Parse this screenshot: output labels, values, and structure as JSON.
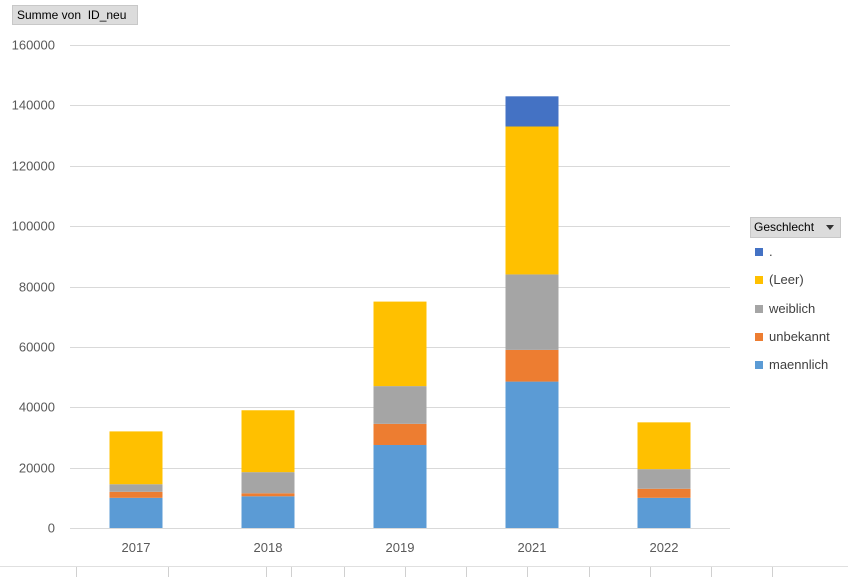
{
  "field_button": {
    "label": "Summe von  ID_neu"
  },
  "legend": {
    "title": "Geschlecht",
    "items": [
      {
        "label": ".",
        "color": "#4472c4"
      },
      {
        "label": "(Leer)",
        "color": "#ffc000"
      },
      {
        "label": "weiblich",
        "color": "#a5a5a5"
      },
      {
        "label": "unbekannt",
        "color": "#ed7d31"
      },
      {
        "label": "maennlich",
        "color": "#5b9bd5"
      }
    ]
  },
  "chart_data": {
    "type": "bar",
    "stacked": true,
    "categories": [
      "2017",
      "2018",
      "2019",
      "2021",
      "2022"
    ],
    "ylim": [
      0,
      160000
    ],
    "yticks": [
      "0",
      "20000",
      "40000",
      "60000",
      "80000",
      "100000",
      "120000",
      "140000",
      "160000"
    ],
    "grid": true,
    "legend_position": "right",
    "series": [
      {
        "name": "maennlich",
        "color": "#5b9bd5",
        "values": [
          10000,
          10500,
          27500,
          48500,
          10000
        ]
      },
      {
        "name": "unbekannt",
        "color": "#ed7d31",
        "values": [
          2000,
          1000,
          7000,
          10500,
          3000
        ]
      },
      {
        "name": "weiblich",
        "color": "#a5a5a5",
        "values": [
          2500,
          7000,
          12500,
          25000,
          6500
        ]
      },
      {
        "name": "(Leer)",
        "color": "#ffc000",
        "values": [
          17500,
          20500,
          28000,
          49000,
          15500
        ]
      },
      {
        "name": ".",
        "color": "#4472c4",
        "values": [
          0,
          0,
          0,
          10000,
          0
        ]
      }
    ]
  }
}
